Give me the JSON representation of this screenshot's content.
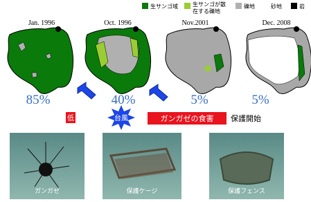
{
  "legend": [
    {
      "lines": [
        "生サンゴ域"
      ]
    },
    {
      "lines": [
        "生サンゴが散",
        "在する礫地"
      ]
    },
    {
      "lines": [
        "礫地"
      ]
    },
    {
      "lines": [
        "砂地"
      ]
    },
    {
      "lines": [
        "岩"
      ]
    }
  ],
  "maps": [
    {
      "date": "Jan. 1996",
      "cover": "85%"
    },
    {
      "date": "Oct. 1996",
      "cover": "40%"
    },
    {
      "date": "Nov.2001",
      "cover": "5%"
    },
    {
      "date": "Dec. 2008",
      "cover": "5%"
    }
  ],
  "events": {
    "low": "低",
    "typhoon": "台風",
    "urchin": "ガンガゼの食害",
    "protect": "保護開始"
  },
  "photos": [
    {
      "caption": "ガンガゼ"
    },
    {
      "caption": "保護ケージ"
    },
    {
      "caption": "保護フェンス"
    }
  ]
}
